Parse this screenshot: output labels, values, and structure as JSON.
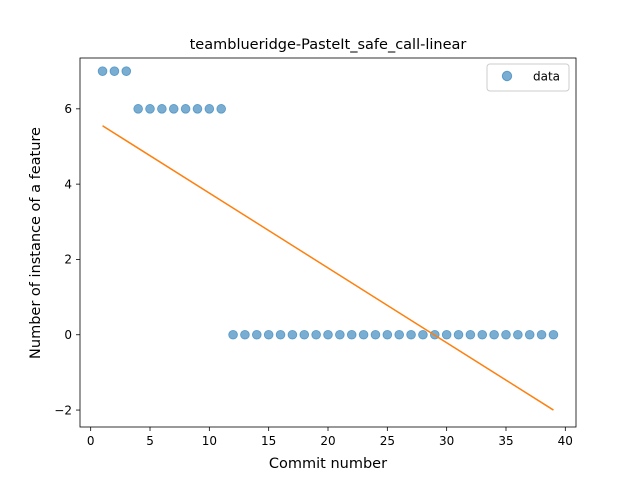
{
  "chart_data": {
    "type": "scatter",
    "title": "teamblueridge-PasteIt_safe_call-linear",
    "xlabel": "Commit number",
    "ylabel": "Number of instance of a feature",
    "xlim": [
      -0.9,
      40.9
    ],
    "ylim": [
      -2.45,
      7.35
    ],
    "xticks": [
      0,
      5,
      10,
      15,
      20,
      25,
      30,
      35,
      40
    ],
    "yticks": [
      -2,
      0,
      2,
      4,
      6
    ],
    "xtick_labels": [
      "0",
      "5",
      "10",
      "15",
      "20",
      "25",
      "30",
      "35",
      "40"
    ],
    "ytick_labels": [
      "−2",
      "0",
      "2",
      "4",
      "6"
    ],
    "legend": {
      "position": "top-right",
      "entries": [
        "data"
      ]
    },
    "series": [
      {
        "name": "data",
        "kind": "scatter",
        "color": "#1f77b4",
        "x": [
          1,
          2,
          3,
          4,
          5,
          6,
          7,
          8,
          9,
          10,
          11,
          12,
          13,
          14,
          15,
          16,
          17,
          18,
          19,
          20,
          21,
          22,
          23,
          24,
          25,
          26,
          27,
          28,
          29,
          30,
          31,
          32,
          33,
          34,
          35,
          36,
          37,
          38,
          39
        ],
        "y": [
          7,
          7,
          7,
          6,
          6,
          6,
          6,
          6,
          6,
          6,
          6,
          0,
          0,
          0,
          0,
          0,
          0,
          0,
          0,
          0,
          0,
          0,
          0,
          0,
          0,
          0,
          0,
          0,
          0,
          0,
          0,
          0,
          0,
          0,
          0,
          0,
          0,
          0,
          0
        ]
      },
      {
        "kind": "line",
        "color": "#ff7f0e",
        "x": [
          1,
          39
        ],
        "y": [
          5.55,
          -2.0
        ]
      }
    ]
  }
}
